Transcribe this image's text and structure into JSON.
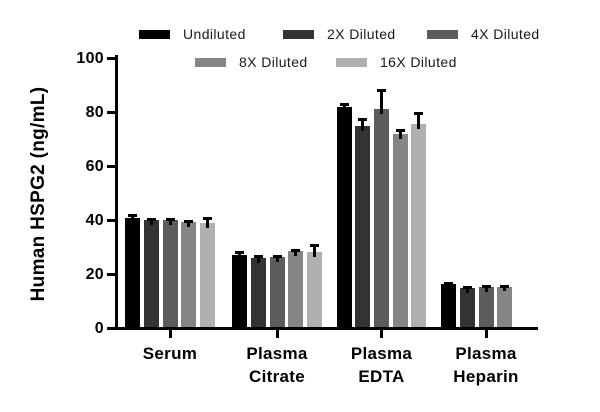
{
  "figure": {
    "background": "#ffffff",
    "axis_color": "#000000"
  },
  "legend": {
    "items": [
      {
        "label": "Undiluted",
        "color": "#000000"
      },
      {
        "label": "2X Diluted",
        "color": "#333333"
      },
      {
        "label": "4X Diluted",
        "color": "#5c5c5c"
      },
      {
        "label": "8X Diluted",
        "color": "#858585"
      },
      {
        "label": "16X Diluted",
        "color": "#b0b0b0"
      }
    ]
  },
  "chart_data": {
    "type": "bar",
    "title": "",
    "ylabel": "Human HSPG2 (ng/mL)",
    "xlabel": "",
    "ylim": [
      0,
      100
    ],
    "yticks": [
      0,
      20,
      40,
      60,
      80,
      100
    ],
    "grid": false,
    "legend_position": "top",
    "error_bars": "upper, black caps",
    "categories": [
      "Serum",
      "Plasma Citrate",
      "Plasma EDTA",
      "Plasma Heparin"
    ],
    "series": [
      {
        "name": "Undiluted",
        "color": "#000000",
        "values": [
          40.2,
          26.8,
          81.5,
          15.8
        ],
        "errors": [
          1.6,
          1.2,
          1.5,
          0.7
        ]
      },
      {
        "name": "2X Diluted",
        "color": "#333333",
        "values": [
          39.6,
          25.5,
          74.3,
          14.5
        ],
        "errors": [
          0.8,
          1.0,
          3.0,
          0.8
        ]
      },
      {
        "name": "4X Diluted",
        "color": "#5c5c5c",
        "values": [
          39.7,
          26.0,
          80.8,
          14.8
        ],
        "errors": [
          0.8,
          0.8,
          7.5,
          0.6
        ]
      },
      {
        "name": "8X Diluted",
        "color": "#858585",
        "values": [
          39.0,
          28.3,
          71.5,
          15.0
        ],
        "errors": [
          0.7,
          0.6,
          2.0,
          0.4
        ]
      },
      {
        "name": "16X Diluted",
        "color": "#b0b0b0",
        "values": [
          38.7,
          27.8,
          75.3,
          null
        ],
        "errors": [
          1.9,
          2.8,
          4.5,
          null
        ]
      }
    ]
  }
}
